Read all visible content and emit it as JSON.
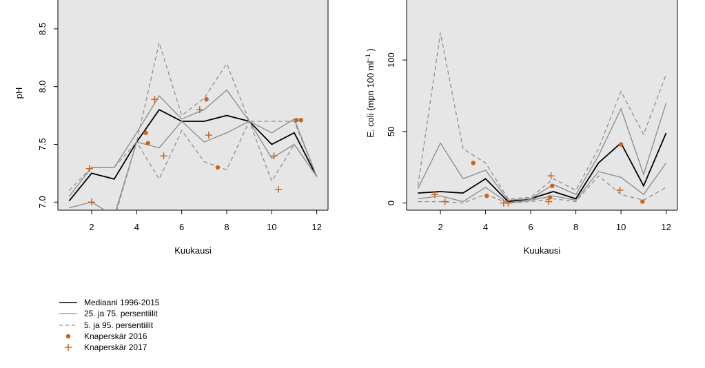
{
  "colors": {
    "panel_bg": "#e6e6e6",
    "median": "#000000",
    "q25_75": "#8f8f8f",
    "p5_95": "#8f8f8f",
    "obs": "#c8651a"
  },
  "chart_data": [
    {
      "type": "line",
      "xlabel": "Kuukausi",
      "ylabel": "pH",
      "xlim": [
        0.5,
        12.5
      ],
      "ylim": [
        6.93,
        8.75
      ],
      "xticks": [
        2,
        4,
        6,
        8,
        10,
        12
      ],
      "yticks": [
        7.0,
        7.5,
        8.0,
        8.5
      ],
      "ytick_labels": [
        "7.0",
        "7.5",
        "8.0",
        "8.5"
      ],
      "grid": false,
      "series": [
        {
          "name": "Mediaani 1996-2015",
          "style": "median",
          "x": [
            1,
            2,
            3,
            4,
            5,
            6,
            7,
            8,
            9,
            10,
            11,
            12
          ],
          "y": [
            7.01,
            7.25,
            7.2,
            7.52,
            7.8,
            7.7,
            7.7,
            7.75,
            7.7,
            7.5,
            7.6,
            7.22
          ]
        },
        {
          "name": "25. ja 75. persentiilit",
          "style": "q",
          "x": [
            1,
            2,
            3,
            4,
            5,
            6,
            7,
            8,
            9,
            10,
            11,
            12
          ],
          "y": [
            7.05,
            7.3,
            7.3,
            7.6,
            7.92,
            7.72,
            7.8,
            7.97,
            7.7,
            7.6,
            7.72,
            7.22
          ]
        },
        {
          "name": "",
          "style": "q",
          "x": [
            1,
            2,
            3,
            4,
            5,
            6,
            7,
            8,
            9,
            10,
            11,
            12
          ],
          "y": [
            6.95,
            7.0,
            6.88,
            7.52,
            7.47,
            7.7,
            7.52,
            7.6,
            7.7,
            7.38,
            7.5,
            7.22
          ]
        },
        {
          "name": "5. ja 95. persentiilit",
          "style": "p",
          "x": [
            1,
            2,
            3,
            4,
            5,
            6,
            7,
            8,
            9,
            10,
            11,
            12
          ],
          "y": [
            7.1,
            7.3,
            7.3,
            7.52,
            8.38,
            7.75,
            7.9,
            8.2,
            7.7,
            7.7,
            7.7,
            7.22
          ]
        },
        {
          "name": "",
          "style": "p",
          "x": [
            1,
            2,
            3,
            4,
            5,
            6,
            7,
            8,
            9,
            10,
            11,
            12
          ],
          "y": [
            6.9,
            6.92,
            6.85,
            7.52,
            7.2,
            7.62,
            7.35,
            7.28,
            7.7,
            7.18,
            7.5,
            7.22
          ]
        },
        {
          "name": "Knaperskär 2016",
          "style": "dot",
          "x": [
            4.4,
            4.5,
            7.1,
            7.6,
            11.1,
            11.3
          ],
          "y": [
            7.6,
            7.51,
            7.89,
            7.3,
            7.71,
            7.71
          ]
        },
        {
          "name": "Knaperskär 2017",
          "style": "plus",
          "x": [
            1.9,
            2.0,
            4.8,
            5.2,
            6.8,
            7.2,
            10.1,
            10.3
          ],
          "y": [
            7.29,
            7.0,
            7.89,
            7.4,
            7.8,
            7.58,
            7.4,
            7.11
          ]
        }
      ]
    },
    {
      "type": "line",
      "xlabel": "Kuukausi",
      "ylabel": "E. coli (mpn 100 ml",
      "ylabel_sup": "−1",
      "ylabel_end": ")",
      "xlim": [
        0.5,
        12.5
      ],
      "ylim": [
        -5,
        142
      ],
      "xticks": [
        2,
        4,
        6,
        8,
        10,
        12
      ],
      "yticks": [
        0,
        50,
        100
      ],
      "ytick_labels": [
        "0",
        "50",
        "100"
      ],
      "grid": false,
      "series": [
        {
          "name": "Mediaani 1996-2015",
          "style": "median",
          "x": [
            1,
            2,
            3,
            4,
            5,
            6,
            7,
            8,
            9,
            10,
            11,
            12
          ],
          "y": [
            7,
            8,
            7,
            17,
            1,
            3,
            8,
            3,
            28,
            42,
            12,
            49
          ]
        },
        {
          "name": "25. ja 75. persentiilit",
          "style": "q",
          "x": [
            1,
            2,
            3,
            4,
            5,
            6,
            7,
            8,
            9,
            10,
            11,
            12
          ],
          "y": [
            10,
            42,
            17,
            23,
            2,
            3,
            13,
            6,
            33,
            66,
            20,
            70
          ]
        },
        {
          "name": "",
          "style": "q",
          "x": [
            1,
            2,
            3,
            4,
            5,
            6,
            7,
            8,
            9,
            10,
            11,
            12
          ],
          "y": [
            3,
            5,
            1,
            11,
            0,
            2,
            5,
            2,
            22,
            18,
            6,
            28
          ]
        },
        {
          "name": "5. ja 95. persentiilit",
          "style": "p",
          "x": [
            1,
            2,
            3,
            4,
            5,
            6,
            7,
            8,
            9,
            10,
            11,
            12
          ],
          "y": [
            12,
            119,
            38,
            28,
            3,
            4,
            17,
            9,
            38,
            78,
            48,
            90
          ]
        },
        {
          "name": "",
          "style": "p",
          "x": [
            1,
            2,
            3,
            4,
            5,
            6,
            7,
            8,
            9,
            10,
            11,
            12
          ],
          "y": [
            1,
            1,
            0,
            6,
            0,
            1,
            3,
            1,
            19,
            6,
            2,
            11
          ]
        },
        {
          "name": "Knaperskär 2016",
          "style": "dot",
          "x": [
            3.45,
            4.05,
            6.85,
            6.95,
            10.0,
            10.95
          ],
          "y": [
            28,
            5,
            4,
            12,
            41,
            1
          ]
        },
        {
          "name": "Knaperskär 2017",
          "style": "plus",
          "x": [
            1.75,
            2.2,
            4.8,
            5.0,
            6.8,
            6.9,
            9.95
          ],
          "y": [
            6,
            1,
            0,
            0,
            1,
            19,
            9
          ]
        }
      ]
    }
  ],
  "legend": {
    "items": [
      {
        "label": "Mediaani 1996-2015",
        "style": "median"
      },
      {
        "label": "25. ja 75. persentiilit",
        "style": "q"
      },
      {
        "label": "5. ja 95. persentiilit",
        "style": "p"
      },
      {
        "label": "Knaperskär 2016",
        "style": "dot"
      },
      {
        "label": "Knaperskär 2017",
        "style": "plus"
      }
    ]
  }
}
